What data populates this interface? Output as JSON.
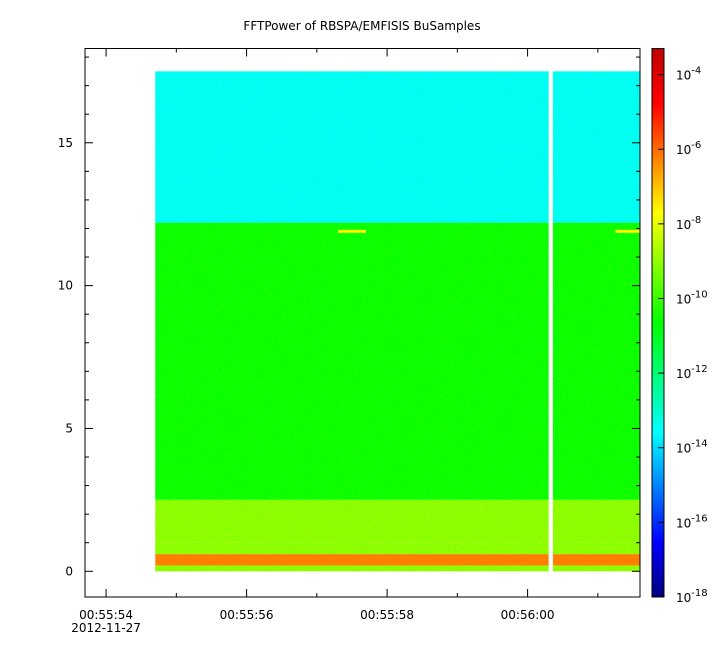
{
  "chart_data": {
    "type": "heatmap",
    "title": "FFTPower of RBSPA/EMFISIS  BuSamples",
    "xlabel": "",
    "ylabel": "",
    "x_ticks": [
      {
        "value": 0,
        "label": "00:55:54",
        "sublabel": "2012-11-27"
      },
      {
        "value": 2,
        "label": "00:55:56"
      },
      {
        "value": 4,
        "label": "00:55:58"
      },
      {
        "value": 6,
        "label": "00:56:00"
      }
    ],
    "x_minor_ticks": [
      1,
      3,
      5,
      7
    ],
    "y_ticks": [
      0,
      5,
      10,
      15
    ],
    "xlim": [
      -0.3,
      7.6
    ],
    "ylim": [
      -0.9,
      18.3
    ],
    "data_extent": {
      "x_start": 0.7,
      "x_end": 7.6,
      "y_start": 0,
      "y_end": 17.5
    },
    "gaps": [
      {
        "x_start": 6.3,
        "x_end": 6.36
      }
    ],
    "bands": [
      {
        "y_start": 12.2,
        "y_end": 17.5,
        "log10_power": -13
      },
      {
        "y_start": 2.5,
        "y_end": 12.2,
        "log10_power": -10.5
      },
      {
        "y_start": 1.0,
        "y_end": 2.5,
        "log10_power": -9.3
      },
      {
        "y_start": 0.6,
        "y_end": 1.0,
        "log10_power": -8.5
      },
      {
        "y_start": 0.2,
        "y_end": 0.6,
        "log10_power": -6.5
      },
      {
        "y_start": 0,
        "y_end": 0.2,
        "log10_power": -8.5
      }
    ],
    "features": [
      {
        "x_start": 3.3,
        "x_end": 3.7,
        "y": 11.9,
        "log10_power": -8
      },
      {
        "x_start": 7.25,
        "x_end": 7.6,
        "y": 11.9,
        "log10_power": -8
      }
    ],
    "colorbar": {
      "scale": "log",
      "range": [
        -18,
        -3.3
      ],
      "ticks": [
        {
          "value": -4,
          "label": "10",
          "exponent": "-4"
        },
        {
          "value": -6,
          "label": "10",
          "exponent": "-6"
        },
        {
          "value": -8,
          "label": "10",
          "exponent": "-8"
        },
        {
          "value": -10,
          "label": "10",
          "exponent": "-10"
        },
        {
          "value": -12,
          "label": "10",
          "exponent": "-12"
        },
        {
          "value": -14,
          "label": "10",
          "exponent": "-14"
        },
        {
          "value": -16,
          "label": "10",
          "exponent": "-16"
        },
        {
          "value": -18,
          "label": "10",
          "exponent": "-18"
        }
      ],
      "colors": [
        "#000080",
        "#0000ff",
        "#0080ff",
        "#00ffff",
        "#00ff80",
        "#00ff00",
        "#80ff00",
        "#ffff00",
        "#ff8000",
        "#ff0000",
        "#c00000"
      ]
    }
  }
}
